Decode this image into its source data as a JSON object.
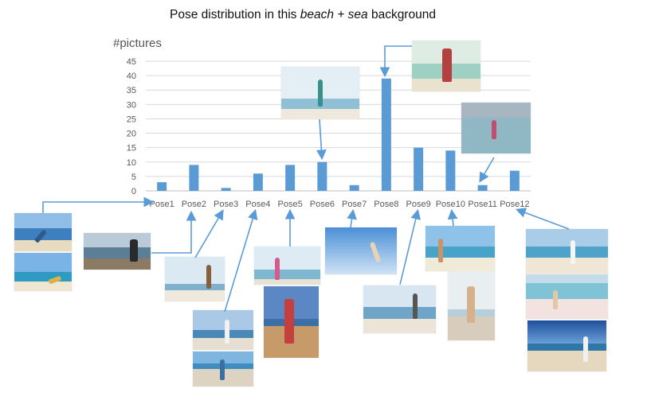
{
  "title_parts": {
    "before": "Pose distribution in this ",
    "italic": "beach + sea",
    "after": " background"
  },
  "chart_data": {
    "type": "bar",
    "title": "Pose distribution in this beach + sea background",
    "ylabel": "#pictures",
    "xlabel": "",
    "categories": [
      "Pose1",
      "Pose2",
      "Pose3",
      "Pose4",
      "Pose5",
      "Pose6",
      "Pose7",
      "Pose8",
      "Pose9",
      "Pose10",
      "Pose11",
      "Pose12"
    ],
    "values": [
      3,
      9,
      1,
      6,
      9,
      10,
      2,
      39,
      15,
      14,
      2,
      7
    ],
    "ylim": [
      0,
      45
    ],
    "yticks": [
      0,
      5,
      10,
      15,
      20,
      25,
      30,
      35,
      40,
      45
    ],
    "grid": true,
    "legend": "none",
    "bar_color": "#5b9bd5"
  },
  "colors": {
    "bar": "#5b9bd5",
    "arrow": "#5b9bd5",
    "grid": "#d9d9d9",
    "axis_text": "#595959"
  }
}
